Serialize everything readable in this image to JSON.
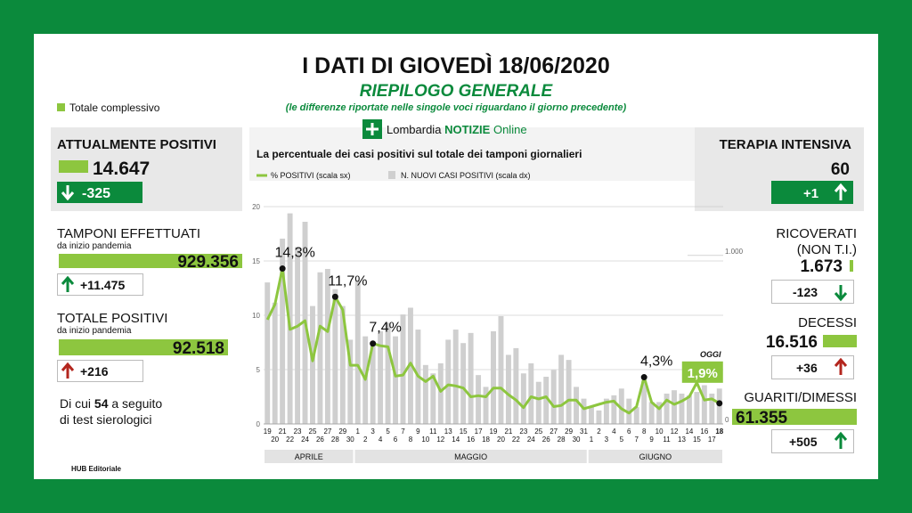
{
  "header": {
    "title": "I DATI DI GIOVEDÌ 18/06/2020",
    "subtitle": "RIEPILOGO GENERALE",
    "note": "(le differenze riportate nelle singole voci riguardano il giorno precedente)",
    "legend": "Totale complessivo",
    "brand": [
      "Lombardia",
      "NOTIZIE",
      "Online"
    ]
  },
  "left": {
    "current": {
      "label": "ATTUALMENTE POSITIVI",
      "value": "14.647",
      "delta": "-325"
    },
    "tests": {
      "label": "TAMPONI EFFETTUATI",
      "sublabel": "da inizio pandemia",
      "value": "929.356",
      "delta": "+11.475"
    },
    "total": {
      "label": "TOTALE POSITIVI",
      "sublabel": "da inizio pandemia",
      "value": "92.518",
      "delta": "+216"
    },
    "serology_note": [
      "Di cui",
      "54",
      "a seguito",
      "di test sierologici"
    ]
  },
  "right": {
    "icu": {
      "label": "TERAPIA INTENSIVA",
      "value": "60",
      "delta": "+1"
    },
    "hospital": {
      "label": [
        "RICOVERATI",
        "(NON T.I.)"
      ],
      "value": "1.673",
      "delta": "-123"
    },
    "deaths": {
      "label": "DECESSI",
      "value": "16.516",
      "delta": "+36"
    },
    "recovered": {
      "label": "GUARITI/DIMESSI",
      "value": "61.355",
      "delta": "+505"
    }
  },
  "footer": "HUB Editoriale",
  "chart_data": {
    "type": "bar-line",
    "title": "La percentuale dei casi positivi sul totale dei tamponi giornalieri",
    "annotation": "OGGI",
    "categories": [
      "19",
      "20",
      "21",
      "22",
      "23",
      "24",
      "25",
      "26",
      "27",
      "28",
      "29",
      "30",
      "1",
      "2",
      "3",
      "4",
      "5",
      "6",
      "7",
      "8",
      "9",
      "10",
      "11",
      "12",
      "13",
      "14",
      "15",
      "16",
      "17",
      "18",
      "19",
      "20",
      "21",
      "22",
      "23",
      "24",
      "25",
      "26",
      "27",
      "28",
      "29",
      "30",
      "31",
      "1",
      "2",
      "3",
      "4",
      "5",
      "6",
      "7",
      "8",
      "9",
      "10",
      "11",
      "12",
      "13",
      "14",
      "15",
      "16",
      "17",
      "18"
    ],
    "months": [
      "APRILE",
      "MAGGIO",
      "GIUGNO"
    ],
    "series": [
      {
        "name": "% POSITIVI (scala sx)",
        "color": "#8dc63f",
        "axis": "y",
        "values": [
          9.6,
          11,
          14.3,
          8.7,
          9,
          9.5,
          5.8,
          9,
          8.5,
          11.7,
          10.5,
          5.4,
          5.4,
          4.1,
          7.4,
          7.2,
          7.1,
          4.4,
          4.5,
          5.6,
          4.4,
          3.9,
          4.4,
          3.0,
          3.6,
          3.5,
          3.3,
          2.5,
          2.6,
          2.5,
          3.3,
          3.3,
          2.7,
          2.2,
          1.5,
          2.5,
          2.3,
          2.5,
          1.6,
          1.7,
          2.2,
          2.2,
          1.4,
          1.6,
          1.8,
          2.0,
          2.1,
          1.4,
          1.0,
          1.6,
          4.3,
          2.0,
          1.4,
          2.2,
          1.8,
          2.1,
          2.5,
          3.8,
          2.2,
          2.3,
          1.9
        ],
        "value_labels": [
          null,
          null,
          "14,3%",
          null,
          null,
          null,
          null,
          null,
          null,
          "11,7%",
          null,
          null,
          null,
          null,
          "7,4%",
          null,
          null,
          null,
          null,
          null,
          null,
          null,
          null,
          null,
          null,
          null,
          null,
          null,
          null,
          null,
          null,
          null,
          null,
          null,
          null,
          null,
          null,
          null,
          null,
          null,
          null,
          null,
          null,
          null,
          null,
          null,
          null,
          null,
          null,
          null,
          "4,3%",
          null,
          null,
          null,
          null,
          null,
          null,
          null,
          null,
          null,
          "1,9%"
        ]
      },
      {
        "name": "N. NUOVI CASI POSITIVI (scala dx)",
        "color": "#cfcfcf",
        "axis": "y2",
        "values": [
          840,
          720,
          1100,
          1250,
          1050,
          1200,
          700,
          900,
          920,
          800,
          700,
          500,
          850,
          520,
          480,
          550,
          600,
          520,
          650,
          690,
          560,
          350,
          300,
          360,
          500,
          560,
          480,
          540,
          290,
          220,
          550,
          640,
          410,
          450,
          300,
          360,
          250,
          280,
          320,
          410,
          380,
          220,
          150,
          100,
          80,
          150,
          170,
          210,
          150,
          100,
          260,
          130,
          130,
          180,
          200,
          180,
          170,
          190,
          230,
          180,
          210
        ]
      }
    ],
    "ylim": [
      0,
      20
    ],
    "yticks": [
      0,
      5,
      10,
      15,
      20
    ],
    "y2lim": [
      0,
      1290
    ],
    "y2ticks": [
      0,
      {
        "value": 1000,
        "label": "1.000"
      }
    ],
    "grid": true
  }
}
